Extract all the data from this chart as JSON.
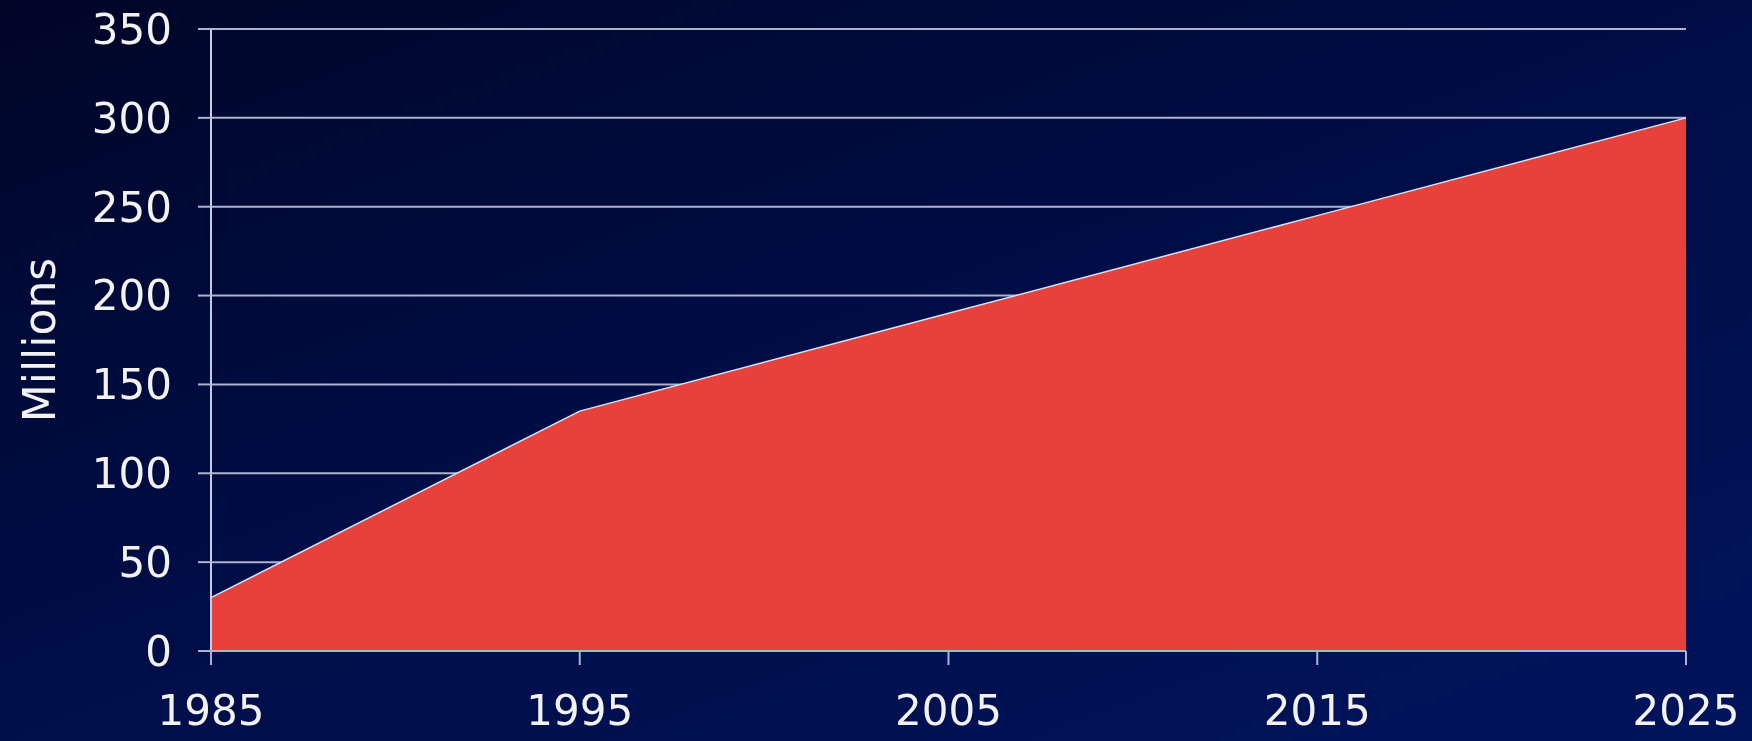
{
  "chart_data": {
    "type": "area",
    "ylabel": "Millions",
    "categories": [
      "1985",
      "1995",
      "2005",
      "2015",
      "2025"
    ],
    "values": [
      30,
      135,
      190,
      245,
      300
    ],
    "color": "#e8403a",
    "ylim": [
      0,
      350
    ],
    "yticks": [
      0,
      50,
      100,
      150,
      200,
      250,
      300,
      350
    ],
    "grid": "y"
  }
}
